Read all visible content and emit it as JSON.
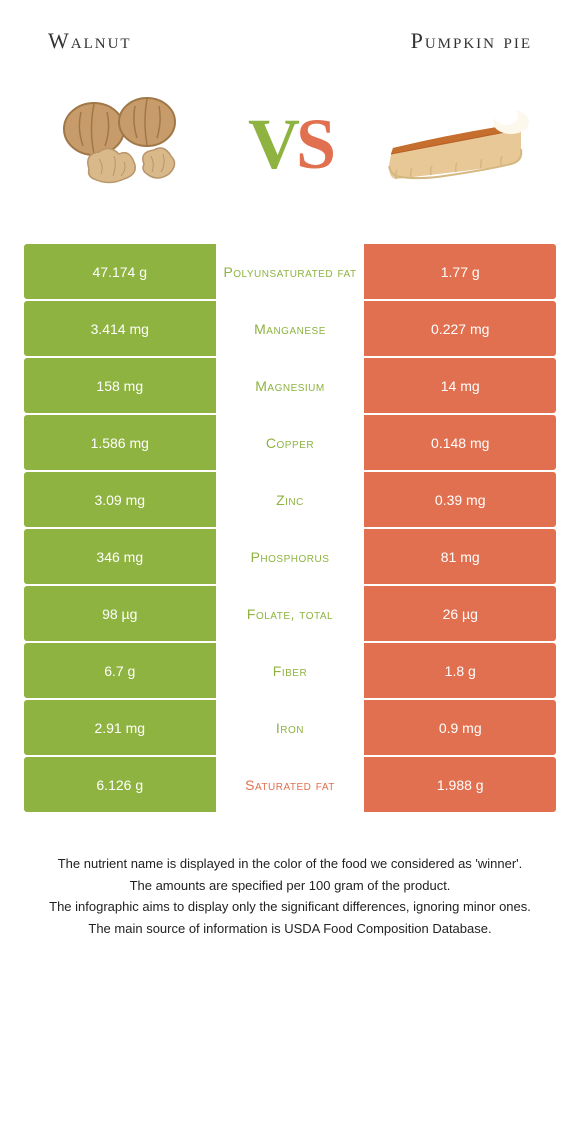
{
  "colors": {
    "left": "#8eb340",
    "right": "#e0704f",
    "vs_v": "#8eb340",
    "vs_s": "#e0704f"
  },
  "titles": {
    "left": "Walnut",
    "right": "Pumpkin pie"
  },
  "rows": [
    {
      "left": "47.174 g",
      "label": "Polyunsaturated fat",
      "right": "1.77 g",
      "winner": "left"
    },
    {
      "left": "3.414 mg",
      "label": "Manganese",
      "right": "0.227 mg",
      "winner": "left"
    },
    {
      "left": "158 mg",
      "label": "Magnesium",
      "right": "14 mg",
      "winner": "left"
    },
    {
      "left": "1.586 mg",
      "label": "Copper",
      "right": "0.148 mg",
      "winner": "left"
    },
    {
      "left": "3.09 mg",
      "label": "Zinc",
      "right": "0.39 mg",
      "winner": "left"
    },
    {
      "left": "346 mg",
      "label": "Phosphorus",
      "right": "81 mg",
      "winner": "left"
    },
    {
      "left": "98 µg",
      "label": "Folate, total",
      "right": "26 µg",
      "winner": "left"
    },
    {
      "left": "6.7 g",
      "label": "Fiber",
      "right": "1.8 g",
      "winner": "left"
    },
    {
      "left": "2.91 mg",
      "label": "Iron",
      "right": "0.9 mg",
      "winner": "left"
    },
    {
      "left": "6.126 g",
      "label": "Saturated fat",
      "right": "1.988 g",
      "winner": "right"
    }
  ],
  "footer": {
    "line1": "The nutrient name is displayed in the color of the food we considered as 'winner'.",
    "line2": "The amounts are specified per 100 gram of the product.",
    "line3": "The infographic aims to display only the significant differences, ignoring minor ones.",
    "line4": "The main source of information is USDA Food Composition Database."
  }
}
